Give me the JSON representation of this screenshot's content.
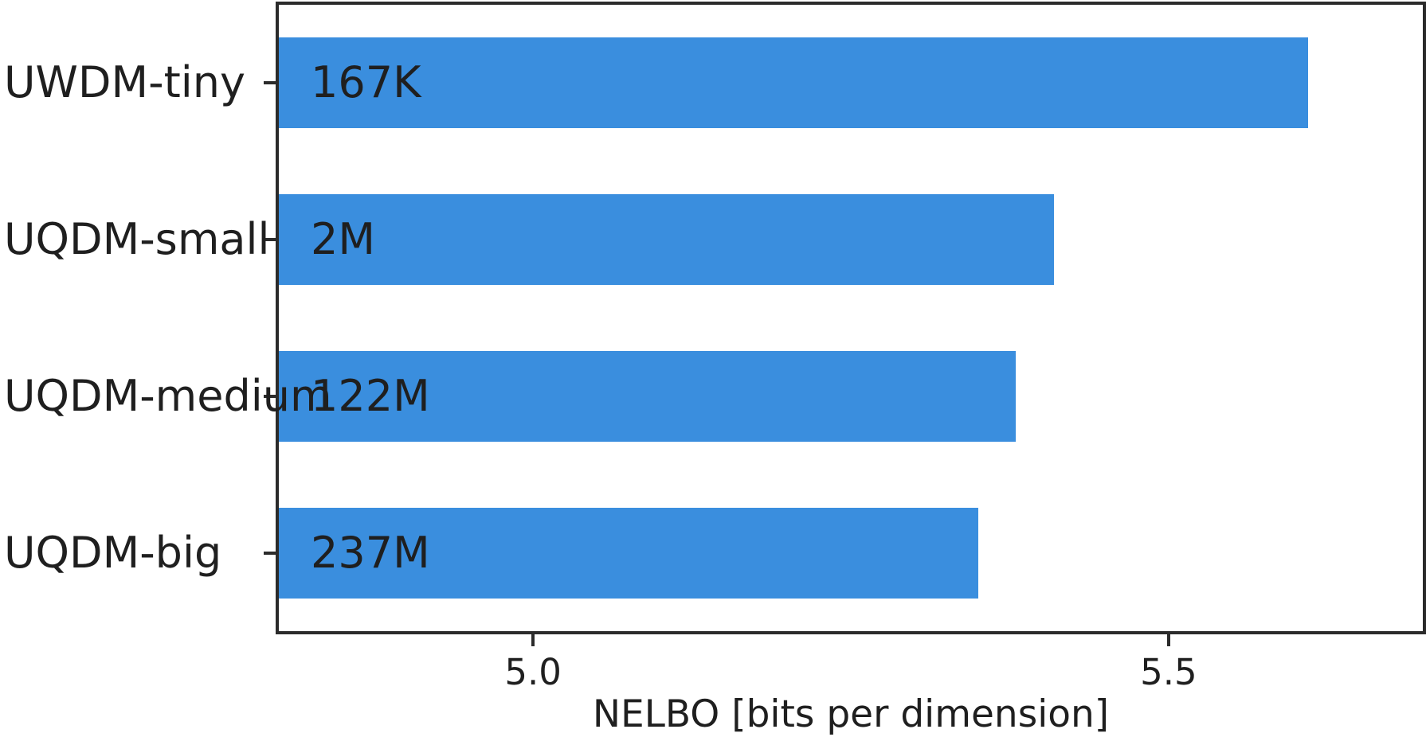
{
  "chart_data": {
    "type": "bar",
    "orientation": "horizontal",
    "title": "",
    "xlabel": "NELBO [bits per dimension]",
    "ylabel": "",
    "categories": [
      "UWDM-tiny",
      "UQDM-small",
      "UQDM-medium",
      "UQDM-big"
    ],
    "values": [
      5.61,
      5.41,
      5.38,
      5.35
    ],
    "bar_labels": [
      "167K",
      "2M",
      "122M",
      "237M"
    ],
    "xlim": [
      4.8,
      5.7
    ],
    "xticks": [
      5.0,
      5.5
    ],
    "xtick_labels": [
      "5.0",
      "5.5"
    ],
    "grid": false,
    "legend": false,
    "colors": {
      "bar": "#3a8ede",
      "text": "#1f1f1f",
      "spine": "#2b2b2b"
    }
  }
}
